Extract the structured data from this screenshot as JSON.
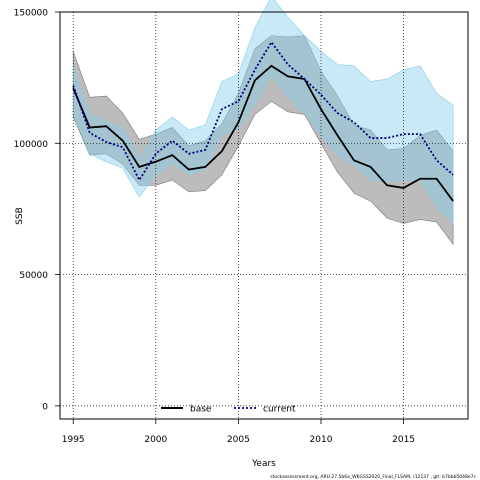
{
  "chart_data": {
    "type": "line",
    "xlabel": "Years",
    "ylabel": "SSB",
    "xlim": [
      1994.2,
      2018.9
    ],
    "ylim": [
      -5000,
      150000
    ],
    "x_ticks": [
      1995,
      2000,
      2005,
      2010,
      2015
    ],
    "y_ticks": [
      0,
      50000,
      100000,
      150000
    ],
    "grid": true,
    "legend_position": "bottom-center",
    "x": [
      1995,
      1996,
      1997,
      1998,
      1999,
      2000,
      2001,
      2002,
      2003,
      2004,
      2005,
      2006,
      2007,
      2008,
      2009,
      2010,
      2011,
      2012,
      2013,
      2014,
      2015,
      2016,
      2017,
      2018
    ],
    "series": [
      {
        "name": "base",
        "color": "#000000",
        "band_color": "#7a7a7a",
        "line_style": "solid",
        "values": [
          121000,
          106000,
          106500,
          101000,
          91000,
          93000,
          95500,
          90000,
          91000,
          97000,
          108000,
          124000,
          129500,
          125500,
          124500,
          113000,
          103000,
          93500,
          91000,
          84000,
          83000,
          86500,
          86500,
          78000
        ],
        "lower": [
          110000,
          95500,
          96000,
          92000,
          84000,
          84000,
          86000,
          81500,
          82000,
          88000,
          99000,
          111000,
          116000,
          112000,
          111000,
          100000,
          89000,
          81000,
          78000,
          71500,
          69500,
          71000,
          70000,
          61500
        ],
        "upper": [
          135000,
          117500,
          118000,
          111500,
          101500,
          103500,
          106000,
          99000,
          101000,
          107500,
          119000,
          136000,
          141000,
          140500,
          141000,
          127500,
          118000,
          107000,
          105000,
          97500,
          98000,
          103000,
          105000,
          97000
        ]
      },
      {
        "name": "current",
        "color": "#000080",
        "band_color": "#87ceeb",
        "line_style": "dotted",
        "values": [
          122000,
          104000,
          100500,
          98500,
          86000,
          96000,
          101000,
          96000,
          97500,
          113000,
          116000,
          128000,
          138500,
          130000,
          124500,
          118500,
          111500,
          108000,
          102000,
          102000,
          103500,
          103500,
          93500,
          88000
        ],
        "lower": [
          111000,
          96000,
          93000,
          90500,
          79500,
          88000,
          92500,
          88000,
          90000,
          103000,
          105500,
          115000,
          126000,
          117500,
          111500,
          103000,
          95500,
          92000,
          86000,
          85500,
          86000,
          86000,
          75500,
          69500
        ],
        "upper": [
          129000,
          111000,
          108000,
          106000,
          94000,
          105000,
          110000,
          105000,
          107000,
          123500,
          126500,
          144000,
          156000,
          148000,
          141000,
          135000,
          130000,
          129500,
          123500,
          124500,
          128000,
          129500,
          119000,
          114500
        ]
      }
    ],
    "footnote": "stockassessment.org, ARU.27.5b6a_WKGSS2020_Final_FLSAM, r12137 , git: b7bbb5048e7c"
  }
}
